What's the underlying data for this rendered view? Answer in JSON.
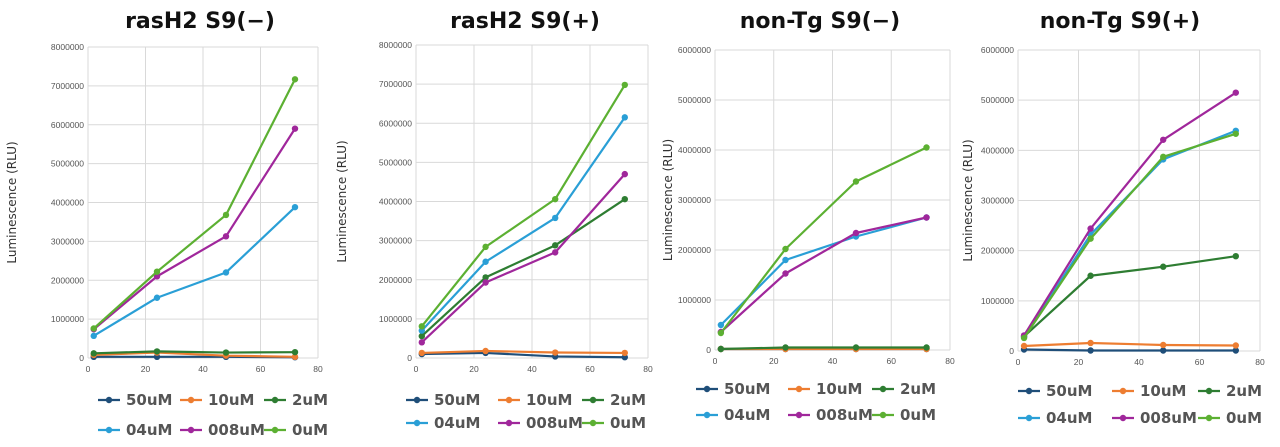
{
  "chart_data": [
    {
      "type": "line",
      "title": "rasH2 S9(−)",
      "xlabel": "",
      "ylabel": "Luminescence (RLU)",
      "xlim": [
        0,
        80
      ],
      "ylim": [
        0,
        8000000
      ],
      "xticks": [
        "0",
        "20",
        "40",
        "60",
        "80"
      ],
      "yticks": [
        "0",
        "1000000",
        "2000000",
        "3000000",
        "4000000",
        "5000000",
        "6000000",
        "7000000",
        "8000000"
      ],
      "x": [
        2,
        24,
        48,
        72
      ],
      "series": [
        {
          "name": "50uM",
          "values": [
            30000,
            30000,
            30000,
            20000
          ]
        },
        {
          "name": "10uM",
          "values": [
            80000,
            140000,
            60000,
            30000
          ]
        },
        {
          "name": "2uM",
          "values": [
            120000,
            170000,
            140000,
            150000
          ]
        },
        {
          "name": "04uM",
          "values": [
            570000,
            1550000,
            2200000,
            3880000
          ]
        },
        {
          "name": "008uM",
          "values": [
            740000,
            2100000,
            3130000,
            5900000
          ]
        },
        {
          "name": "0uM",
          "values": [
            760000,
            2220000,
            3680000,
            7170000
          ]
        }
      ]
    },
    {
      "type": "line",
      "title": "rasH2 S9(+)",
      "xlabel": "",
      "ylabel": "Luminescence (RLU)",
      "xlim": [
        0,
        80
      ],
      "ylim": [
        0,
        8000000
      ],
      "xticks": [
        "0",
        "20",
        "40",
        "60",
        "80"
      ],
      "yticks": [
        "0",
        "1000000",
        "2000000",
        "3000000",
        "4000000",
        "5000000",
        "6000000",
        "7000000",
        "8000000"
      ],
      "x": [
        2,
        24,
        48,
        72
      ],
      "series": [
        {
          "name": "50uM",
          "values": [
            100000,
            130000,
            40000,
            20000
          ]
        },
        {
          "name": "10uM",
          "values": [
            130000,
            180000,
            140000,
            130000
          ]
        },
        {
          "name": "2uM",
          "values": [
            560000,
            2060000,
            2880000,
            4060000
          ]
        },
        {
          "name": "04uM",
          "values": [
            700000,
            2460000,
            3580000,
            6150000
          ]
        },
        {
          "name": "008uM",
          "values": [
            400000,
            1930000,
            2700000,
            4700000
          ]
        },
        {
          "name": "0uM",
          "values": [
            810000,
            2840000,
            4060000,
            6980000
          ]
        }
      ]
    },
    {
      "type": "line",
      "title": "non-Tg S9(−)",
      "xlabel": "",
      "ylabel": "Luminescence (RLU)",
      "xlim": [
        0,
        80
      ],
      "ylim": [
        0,
        6000000
      ],
      "xticks": [
        "0",
        "20",
        "40",
        "60",
        "80"
      ],
      "yticks": [
        "0",
        "1000000",
        "2000000",
        "3000000",
        "4000000",
        "5000000",
        "6000000"
      ],
      "x": [
        2,
        24,
        48,
        72
      ],
      "series": [
        {
          "name": "50uM",
          "values": [
            20000,
            20000,
            20000,
            20000
          ]
        },
        {
          "name": "10uM",
          "values": [
            20000,
            20000,
            20000,
            20000
          ]
        },
        {
          "name": "2uM",
          "values": [
            20000,
            50000,
            50000,
            50000
          ]
        },
        {
          "name": "04uM",
          "values": [
            500000,
            1800000,
            2270000,
            2650000
          ]
        },
        {
          "name": "008uM",
          "values": [
            360000,
            1530000,
            2340000,
            2650000
          ]
        },
        {
          "name": "0uM",
          "values": [
            340000,
            2020000,
            3370000,
            4050000
          ]
        }
      ]
    },
    {
      "type": "line",
      "title": "non-Tg S9(+)",
      "xlabel": "",
      "ylabel": "Luminescence (RLU)",
      "xlim": [
        0,
        80
      ],
      "ylim": [
        0,
        6000000
      ],
      "xticks": [
        "0",
        "20",
        "40",
        "60",
        "80"
      ],
      "yticks": [
        "0",
        "1000000",
        "2000000",
        "3000000",
        "4000000",
        "5000000",
        "6000000"
      ],
      "x": [
        2,
        24,
        48,
        72
      ],
      "series": [
        {
          "name": "50uM",
          "values": [
            30000,
            10000,
            10000,
            10000
          ]
        },
        {
          "name": "10uM",
          "values": [
            100000,
            160000,
            120000,
            110000
          ]
        },
        {
          "name": "2uM",
          "values": [
            290000,
            1500000,
            1680000,
            1890000
          ]
        },
        {
          "name": "04uM",
          "values": [
            280000,
            2320000,
            3820000,
            4390000
          ]
        },
        {
          "name": "008uM",
          "values": [
            310000,
            2440000,
            4210000,
            5150000
          ]
        },
        {
          "name": "0uM",
          "values": [
            260000,
            2240000,
            3870000,
            4330000
          ]
        }
      ]
    }
  ],
  "series_colors": [
    "#1f4e79",
    "#ed7d31",
    "#2e7d32",
    "#2a9fd6",
    "#a0279b",
    "#5cb032"
  ],
  "grid_color": "#d9d9d9"
}
